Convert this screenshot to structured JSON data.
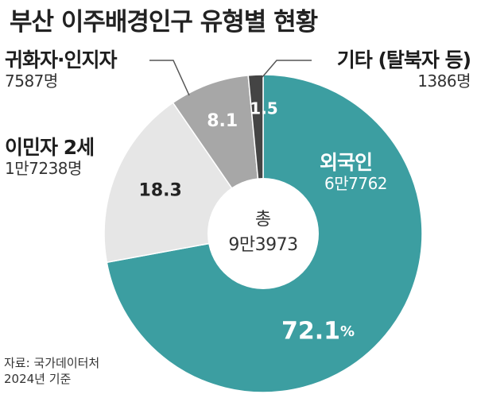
{
  "title": "부산 이주배경인구 유형별 현황",
  "chart_data": {
    "type": "pie",
    "donut": true,
    "title": "부산 이주배경인구 유형별 현황",
    "total_label": "총",
    "total_value": "9만3973",
    "categories": [
      "외국인",
      "이민자 2세",
      "귀화자·인지자",
      "기타 (탈북자 등)"
    ],
    "values": [
      72.1,
      18.3,
      8.1,
      1.5
    ],
    "value_labels": [
      "72.1",
      "18.3",
      "8.1",
      "1.5"
    ],
    "percent_sign": "%",
    "counts": [
      "6만7762",
      "1만7238명",
      "7587명",
      "1386명"
    ],
    "colors": [
      "#3c9ea1",
      "#e6e6e6",
      "#a7a7a7",
      "#444444"
    ]
  },
  "source": {
    "line1": "자료: 국가데이터처",
    "line2": "2024년 기준"
  }
}
